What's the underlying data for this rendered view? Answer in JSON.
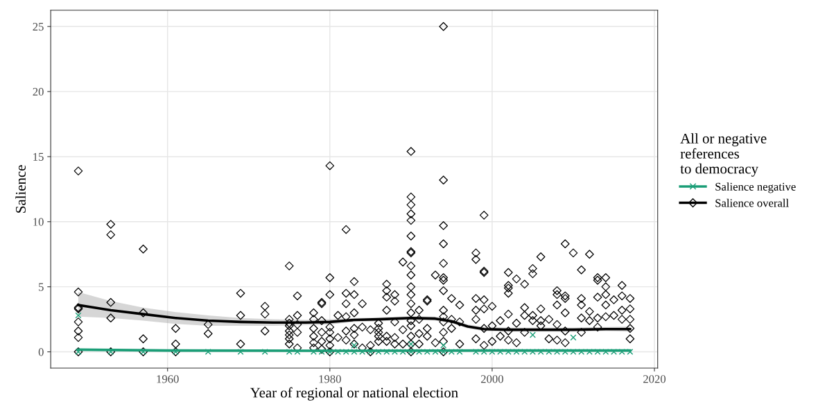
{
  "chart_data": {
    "type": "scatter",
    "xlabel": "Year of regional or national election",
    "ylabel": "Salience",
    "legend_title": "All or negative\nreferences\nto democracy",
    "xlim": [
      1945.6,
      2020.4
    ],
    "xticks": [
      1960,
      1980,
      2000,
      2020
    ],
    "ylim": [
      -1.25,
      26.25
    ],
    "yticks": [
      0,
      5,
      10,
      15,
      20,
      25
    ],
    "grid": true,
    "legend": "right",
    "series": [
      {
        "name": "Salience overall",
        "marker": "diamond",
        "color": "#000000",
        "x": [
          1949,
          1949,
          1949,
          1949,
          1949,
          1949,
          1949,
          1949,
          1953,
          1953,
          1953,
          1953,
          1953,
          1957,
          1957,
          1957,
          1957,
          1961,
          1961,
          1961,
          1965,
          1965,
          1969,
          1969,
          1969,
          1972,
          1972,
          1972,
          1975,
          1975,
          1975,
          1975,
          1975,
          1975,
          1975,
          1975,
          1976,
          1976,
          1976,
          1976,
          1976,
          1978,
          1978,
          1978,
          1978,
          1978,
          1978,
          1979,
          1979,
          1979,
          1979,
          1979,
          1979,
          1980,
          1980,
          1980,
          1980,
          1980,
          1980,
          1980,
          1980,
          1981,
          1981,
          1982,
          1982,
          1982,
          1982,
          1982,
          1982,
          1983,
          1983,
          1983,
          1983,
          1983,
          1983,
          1984,
          1984,
          1984,
          1985,
          1985,
          1985,
          1986,
          1986,
          1986,
          1986,
          1986,
          1987,
          1987,
          1987,
          1987,
          1987,
          1987,
          1988,
          1988,
          1988,
          1988,
          1988,
          1989,
          1989,
          1989,
          1990,
          1990,
          1990,
          1990,
          1990,
          1990,
          1990,
          1990,
          1990,
          1990,
          1990,
          1990,
          1990,
          1990,
          1990,
          1990,
          1990,
          1990,
          1990,
          1991,
          1991,
          1991,
          1991,
          1992,
          1992,
          1992,
          1992,
          1993,
          1993,
          1994,
          1994,
          1994,
          1994,
          1994,
          1994,
          1994,
          1994,
          1994,
          1994,
          1994,
          1994,
          1994,
          1994,
          1995,
          1995,
          1995,
          1996,
          1996,
          1996,
          1998,
          1998,
          1998,
          1998,
          1998,
          1998,
          1999,
          1999,
          1999,
          1999,
          1999,
          1999,
          1999,
          2000,
          2000,
          2000,
          2001,
          2001,
          2002,
          2002,
          2002,
          2002,
          2002,
          2002,
          2002,
          2003,
          2003,
          2003,
          2004,
          2004,
          2004,
          2004,
          2005,
          2005,
          2005,
          2005,
          2006,
          2006,
          2006,
          2006,
          2007,
          2007,
          2008,
          2008,
          2008,
          2008,
          2008,
          2009,
          2009,
          2009,
          2009,
          2009,
          2009,
          2010,
          2011,
          2011,
          2011,
          2011,
          2011,
          2012,
          2012,
          2012,
          2013,
          2013,
          2013,
          2013,
          2013,
          2014,
          2014,
          2014,
          2014,
          2014,
          2015,
          2015,
          2016,
          2016,
          2016,
          2016,
          2017,
          2017,
          2017,
          2017,
          2017
        ],
        "values": [
          13.9,
          4.6,
          3.4,
          3.3,
          2.3,
          1.6,
          1.1,
          0,
          9.8,
          9.0,
          3.8,
          2.6,
          0,
          7.9,
          3.0,
          1.0,
          0,
          1.8,
          0.6,
          0,
          2.1,
          1.4,
          4.5,
          2.8,
          0.6,
          3.5,
          2.9,
          1.6,
          6.6,
          2.5,
          2.2,
          2.0,
          1.6,
          1.3,
          1.0,
          0.6,
          4.3,
          2.8,
          2.1,
          1.5,
          0.3,
          3.0,
          2.5,
          1.8,
          1.2,
          0.7,
          0.3,
          3.8,
          3.7,
          2.4,
          1.5,
          0.8,
          0.2,
          14.3,
          5.7,
          4.4,
          1.9,
          1.5,
          1.0,
          0.5,
          0,
          2.8,
          1.1,
          9.4,
          4.5,
          3.7,
          2.7,
          1.6,
          0.9,
          5.4,
          4.4,
          3.0,
          1.8,
          1.3,
          0.6,
          3.7,
          1.9,
          0.3,
          1.7,
          0.5,
          0,
          2.2,
          1.8,
          1.5,
          1.2,
          0.8,
          5.2,
          4.7,
          4.2,
          3.2,
          1.2,
          0.8,
          4.4,
          3.9,
          2.3,
          1.1,
          0.6,
          6.9,
          1.7,
          0.6,
          15.4,
          11.9,
          11.3,
          10.6,
          10.1,
          8.9,
          7.7,
          7.6,
          6.6,
          5.9,
          5.0,
          4.4,
          3.7,
          3.0,
          2.4,
          2.0,
          1.2,
          0.6,
          0,
          3.2,
          2.5,
          1.4,
          0.6,
          4.0,
          3.9,
          1.8,
          1.2,
          5.9,
          0.7,
          25.0,
          13.2,
          9.7,
          8.3,
          6.8,
          5.7,
          5.5,
          4.7,
          3.2,
          2.7,
          2.3,
          1.5,
          0.8,
          0,
          4.1,
          2.5,
          1.8,
          3.6,
          2.3,
          0.6,
          7.6,
          7.1,
          4.1,
          3.2,
          2.5,
          1.0,
          10.5,
          6.2,
          6.1,
          4.0,
          3.3,
          1.8,
          0.5,
          3.5,
          2.0,
          0.8,
          2.4,
          1.2,
          6.1,
          5.1,
          4.9,
          4.5,
          2.9,
          1.6,
          0.9,
          5.6,
          2.2,
          0.7,
          5.2,
          3.4,
          2.8,
          1.5,
          6.4,
          6.0,
          2.8,
          2.4,
          7.3,
          3.3,
          2.4,
          2.0,
          2.5,
          1.0,
          4.7,
          4.4,
          3.6,
          2.1,
          0.9,
          8.3,
          4.3,
          4.1,
          3.0,
          1.6,
          0.7,
          7.6,
          6.3,
          4.1,
          3.6,
          2.6,
          1.5,
          7.5,
          3.1,
          2.4,
          5.7,
          5.5,
          4.2,
          2.6,
          1.9,
          5.7,
          5.0,
          4.4,
          3.6,
          2.7,
          4.0,
          2.8,
          5.1,
          4.3,
          3.2,
          2.5,
          4.1,
          3.3,
          2.5,
          1.8,
          1.0
        ]
      },
      {
        "name": "Salience negative",
        "marker": "cross",
        "color": "#1b9e77",
        "x": [
          1949,
          1949,
          1953,
          1957,
          1961,
          1965,
          1969,
          1972,
          1975,
          1976,
          1978,
          1979,
          1980,
          1981,
          1982,
          1983,
          1983,
          1984,
          1985,
          1986,
          1987,
          1988,
          1989,
          1990,
          1990,
          1991,
          1992,
          1993,
          1994,
          1994,
          1995,
          1996,
          1998,
          1999,
          2000,
          2001,
          2002,
          2003,
          2004,
          2005,
          2005,
          2006,
          2007,
          2008,
          2009,
          2010,
          2010,
          2011,
          2012,
          2013,
          2014,
          2015,
          2016,
          2017
        ],
        "values": [
          2.8,
          0,
          0,
          0,
          0,
          0,
          0,
          0,
          0,
          0,
          0,
          0,
          0,
          0,
          0,
          0.5,
          0,
          0,
          0,
          0,
          0,
          0,
          0,
          0.6,
          0,
          0,
          0,
          0,
          0.5,
          0,
          0,
          0,
          0,
          0,
          0,
          0,
          0,
          0,
          0,
          1.3,
          0,
          0,
          0,
          0,
          0,
          1.1,
          0,
          0,
          0,
          0,
          0,
          0,
          0,
          0
        ]
      },
      {
        "type": "line",
        "color": "#000000",
        "x": [
          1949,
          1953,
          1957,
          1961,
          1965,
          1969,
          1973,
          1977,
          1980,
          1983,
          1986,
          1990,
          1993,
          1995,
          1997,
          1999,
          2002,
          2006,
          2010,
          2014,
          2017
        ],
        "values": [
          3.6,
          3.2,
          2.9,
          2.6,
          2.4,
          2.3,
          2.25,
          2.25,
          2.3,
          2.45,
          2.5,
          2.6,
          2.55,
          2.35,
          1.95,
          1.75,
          1.7,
          1.7,
          1.7,
          1.75,
          1.75
        ],
        "lower": [
          2.7,
          2.6,
          2.4,
          2.15,
          2.0,
          2.0,
          2.0,
          2.05,
          2.1,
          2.3,
          2.35,
          2.45,
          2.4,
          2.2,
          1.8,
          1.6,
          1.55,
          1.55,
          1.55,
          1.6,
          1.55
        ],
        "upper": [
          4.6,
          3.9,
          3.4,
          3.05,
          2.8,
          2.6,
          2.5,
          2.45,
          2.5,
          2.6,
          2.65,
          2.75,
          2.7,
          2.5,
          2.1,
          1.9,
          1.85,
          1.85,
          1.85,
          1.9,
          1.95
        ]
      },
      {
        "type": "line",
        "color": "#1b9e77",
        "x": [
          1949,
          1960,
          1980,
          2000,
          2017
        ],
        "values": [
          0.17,
          0.1,
          0.08,
          0.1,
          0.1
        ]
      }
    ]
  }
}
